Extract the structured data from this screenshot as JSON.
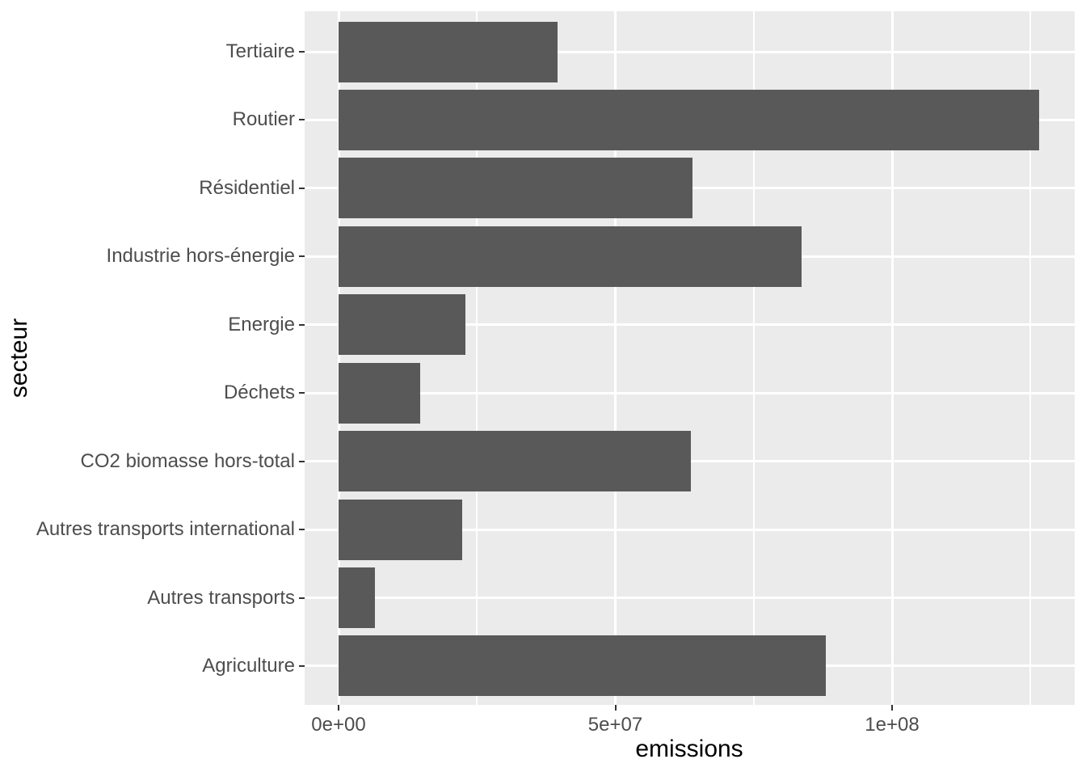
{
  "chart_data": {
    "type": "bar",
    "orientation": "horizontal",
    "xlabel": "emissions",
    "ylabel": "secteur",
    "categories_top_to_bottom": [
      "Tertiaire",
      "Routier",
      "Résidentiel",
      "Industrie hors-énergie",
      "Energie",
      "Déchets",
      "CO2 biomasse hors-total",
      "Autres transports international",
      "Autres transports",
      "Agriculture"
    ],
    "values": [
      39600000,
      126600000,
      63900000,
      83700000,
      22900000,
      14700000,
      63700000,
      22300000,
      6600000,
      88000000
    ],
    "x_ticks": [
      {
        "label": "0e+00",
        "value": 0
      },
      {
        "label": "5e+07",
        "value": 50000000
      },
      {
        "label": "1e+08",
        "value": 100000000
      }
    ],
    "x_minor_ticks": [
      25000000,
      75000000,
      125000000
    ],
    "xlim": [
      0,
      133000000
    ],
    "grid": true,
    "legend": false,
    "colors": {
      "bar": "#595959",
      "panel_bg": "#EBEBEB",
      "grid": "#FFFFFF",
      "axis_text": "#4D4D4D",
      "axis_title": "#000000",
      "tick_mark": "#333333",
      "figure_bg": "#FFFFFF"
    }
  }
}
